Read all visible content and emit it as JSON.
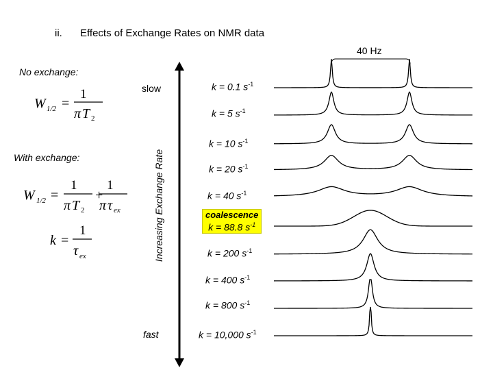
{
  "header": {
    "numeral": "ii.",
    "title": "Effects of Exchange Rates on NMR data"
  },
  "scale_label": "40 Hz",
  "no_exchange_label": "No exchange:",
  "with_exchange_label": "With exchange:",
  "axis": {
    "slow": "slow",
    "fast": "fast",
    "vertical_label": "Increasing Exchange Rate"
  },
  "coalescence_label": "coalescence",
  "spectra": [
    {
      "k_text": "k = 0.1 s",
      "exp": "-1",
      "k": 0.1
    },
    {
      "k_text": "k = 5 s",
      "exp": "-1",
      "k": 5
    },
    {
      "k_text": "k = 10 s",
      "exp": "-1",
      "k": 10
    },
    {
      "k_text": "k = 20 s",
      "exp": "-1",
      "k": 20
    },
    {
      "k_text": "k = 40 s",
      "exp": "-1",
      "k": 40
    },
    {
      "k_text": "k = 88.8 s",
      "exp": "-1",
      "k": 88.8
    },
    {
      "k_text": "k = 200 s",
      "exp": "-1",
      "k": 200
    },
    {
      "k_text": "k = 400 s",
      "exp": "-1",
      "k": 400
    },
    {
      "k_text": "k = 800 s",
      "exp": "-1",
      "k": 800
    },
    {
      "k_text": "k = 10,000 s",
      "exp": "-1",
      "k": 10000
    }
  ],
  "equations": {
    "w": "W",
    "half": "1/2",
    "one": "1",
    "pi": "π",
    "t": "T",
    "two": "2",
    "tau": "τ",
    "ex": "ex",
    "k": "k",
    "plus": "+",
    "eq": "="
  }
}
